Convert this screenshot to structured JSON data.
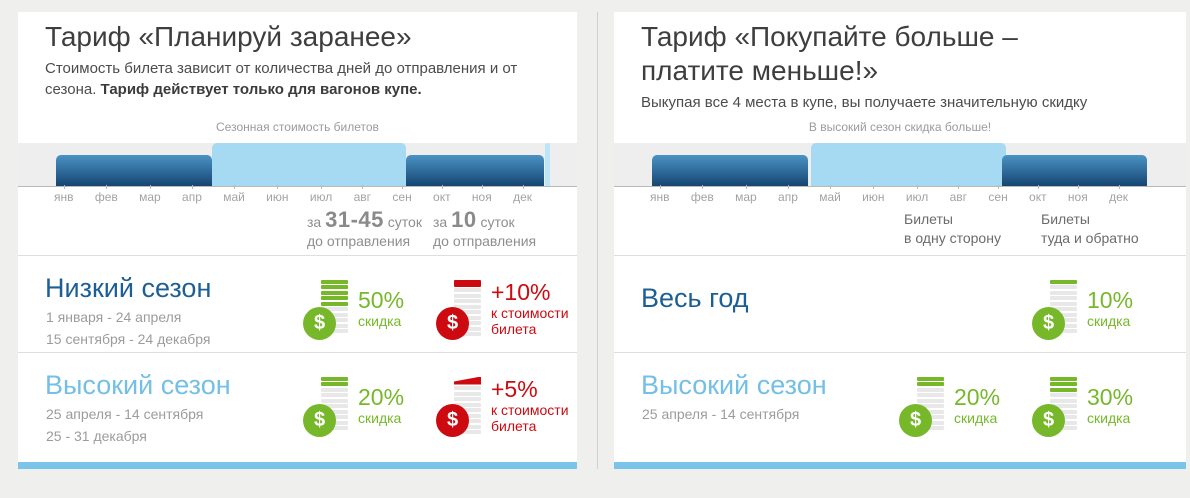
{
  "colors": {
    "accent": "#79c4e8",
    "green": "#76b82a",
    "red": "#cc0a10",
    "high": "#a6d9f2",
    "seasontop": "#4a93c5",
    "seasonbottom": "#164570",
    "namedark": "#1d5f94",
    "namelight": "#74bfe7"
  },
  "currency_symbol": "$",
  "panels": [
    {
      "title_line1": "Тариф «Планируй заранее»",
      "title_line2": "",
      "subtitle_normal": "Стоимость билета зависит от количества дней до отправления и от сезона. ",
      "subtitle_bold": "Тариф действует только для вагонов купе.",
      "caption": "Сезонная стоимость билетов",
      "months": [
        "янв",
        "фев",
        "мар",
        "апр",
        "май",
        "июн",
        "июл",
        "авг",
        "сен",
        "окт",
        "ноя",
        "дек"
      ],
      "columns": [
        {
          "pre": "за ",
          "big": "31-45",
          "post": " суток",
          "line2": "до отправления"
        },
        {
          "pre": "за ",
          "big": "10",
          "post": " суток",
          "line2": "до отправления"
        }
      ],
      "rows": [
        {
          "name": "Низкий сезон",
          "dates": [
            "1 января - 24 апреля",
            "15 сентября - 24 декабря"
          ],
          "cells": [
            {
              "kind": "discount",
              "bars": 5,
              "value": "50%",
              "label": "скидка"
            },
            {
              "kind": "surcharge",
              "bars": 1,
              "value": "+10%",
              "label": "к стоимости билета"
            }
          ]
        },
        {
          "name": "Высокий сезон",
          "dates": [
            "25 апреля - 14 сентября",
            "25 - 31 декабря"
          ],
          "cells": [
            {
              "kind": "discount",
              "bars": 2,
              "value": "20%",
              "label": "скидка"
            },
            {
              "kind": "surcharge",
              "bars": 1,
              "wedge": true,
              "value": "+5%",
              "label": "к стоимости билета"
            }
          ]
        }
      ]
    },
    {
      "title_line1": "Тариф «Покупайте больше –",
      "title_line2": "платите меньше!»",
      "subtitle_normal": "Выкупая все 4 места в купе, вы получаете значительную скидку",
      "subtitle_bold": "",
      "caption": "В высокий сезон скидка больше!",
      "months": [
        "янв",
        "фев",
        "мар",
        "апр",
        "май",
        "июн",
        "июл",
        "авг",
        "сен",
        "окт",
        "ноя",
        "дек"
      ],
      "columns": [
        {
          "pre": "",
          "big": "",
          "post": "Билеты",
          "line2": "в одну сторону"
        },
        {
          "pre": "",
          "big": "",
          "post": "Билеты",
          "line2": "туда и обратно"
        }
      ],
      "rows": [
        {
          "name": "Весь год",
          "dates": [],
          "cells": [
            null,
            {
              "kind": "discount",
              "bars": 1,
              "value": "10%",
              "label": "скидка"
            }
          ]
        },
        {
          "name": "Высокий сезон",
          "dates": [
            "25 апреля - 14 сентября"
          ],
          "cells": [
            {
              "kind": "discount",
              "bars": 2,
              "value": "20%",
              "label": "скидка"
            },
            {
              "kind": "discount",
              "bars": 3,
              "value": "30%",
              "label": "скидка"
            }
          ]
        }
      ]
    }
  ]
}
